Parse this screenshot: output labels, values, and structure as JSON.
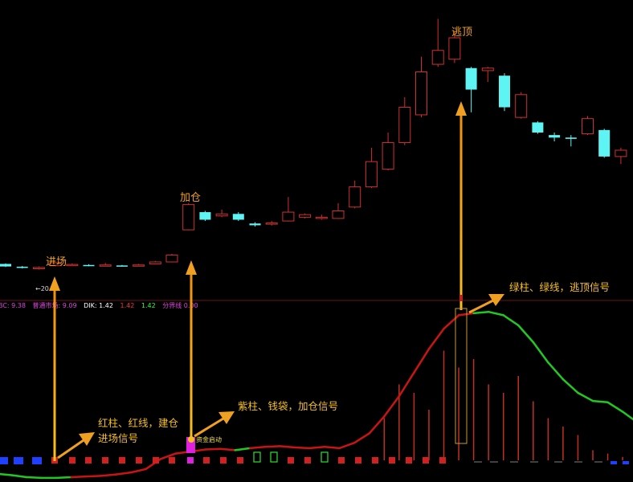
{
  "chart_data": {
    "type": "candlestick",
    "title": "",
    "price_panel": {
      "price_annotation": "←20.73",
      "annotations": {
        "entry": "进场",
        "add": "加仓",
        "escape": "逃顶"
      },
      "candles": [
        {
          "o": 10,
          "c": 9,
          "h": 10.2,
          "l": 8.8
        },
        {
          "o": 8.9,
          "c": 8.6,
          "h": 9.2,
          "l": 8.2
        },
        {
          "o": 8.4,
          "c": 8.6,
          "h": 9.0,
          "l": 7.8
        },
        {
          "o": 9.3,
          "c": 10.5,
          "h": 10.7,
          "l": 9.1
        },
        {
          "o": 9.6,
          "c": 9.8,
          "h": 10.2,
          "l": 9.4
        },
        {
          "o": 9.6,
          "c": 9.3,
          "h": 9.9,
          "l": 9.1
        },
        {
          "o": 9.3,
          "c": 9.6,
          "h": 10.4,
          "l": 9.1
        },
        {
          "o": 9.4,
          "c": 9.3,
          "h": 9.6,
          "l": 9.0
        },
        {
          "o": 9.3,
          "c": 9.6,
          "h": 10.0,
          "l": 9.1
        },
        {
          "o": 10.0,
          "c": 10.8,
          "h": 11.2,
          "l": 9.8
        },
        {
          "o": 10.8,
          "c": 13.5,
          "h": 14.0,
          "l": 10.6
        },
        {
          "o": 23.5,
          "c": 33.5,
          "h": 34.0,
          "l": 23.3
        },
        {
          "o": 30.5,
          "c": 27.5,
          "h": 31.0,
          "l": 27.0
        },
        {
          "o": 29.0,
          "c": 29.8,
          "h": 31.5,
          "l": 28.5
        },
        {
          "o": 29.8,
          "c": 27.5,
          "h": 30.5,
          "l": 27.0
        },
        {
          "o": 26.0,
          "c": 25.3,
          "h": 26.5,
          "l": 24.8
        },
        {
          "o": 25.8,
          "c": 26.2,
          "h": 27.0,
          "l": 25.2
        },
        {
          "o": 27.0,
          "c": 30.5,
          "h": 36.5,
          "l": 26.8
        },
        {
          "o": 28.5,
          "c": 29.5,
          "h": 30.0,
          "l": 28.0
        },
        {
          "o": 28.0,
          "c": 28.5,
          "h": 29.5,
          "l": 27.5
        },
        {
          "o": 28.0,
          "c": 31.0,
          "h": 34.0,
          "l": 27.8
        },
        {
          "o": 32.5,
          "c": 40.5,
          "h": 43.0,
          "l": 32.0
        },
        {
          "o": 40.5,
          "c": 50.5,
          "h": 56.0,
          "l": 40.0
        },
        {
          "o": 47.5,
          "c": 58.0,
          "h": 62.0,
          "l": 47.0
        },
        {
          "o": 58.0,
          "c": 72.0,
          "h": 76.0,
          "l": 57.0
        },
        {
          "o": 69.0,
          "c": 86.0,
          "h": 92.0,
          "l": 68.0
        },
        {
          "o": 89.0,
          "c": 94.5,
          "h": 107.0,
          "l": 88.0
        },
        {
          "o": 91.0,
          "c": 99.5,
          "h": 102.0,
          "l": 89.5
        },
        {
          "o": 87.5,
          "c": 79.0,
          "h": 88.0,
          "l": 70.0
        },
        {
          "o": 86.5,
          "c": 87.5,
          "h": 88.0,
          "l": 82.0
        },
        {
          "o": 84.5,
          "c": 72.0,
          "h": 85.5,
          "l": 70.5
        },
        {
          "o": 68.0,
          "c": 77.0,
          "h": 78.0,
          "l": 67.5
        },
        {
          "o": 66.0,
          "c": 62.0,
          "h": 66.5,
          "l": 61.5
        },
        {
          "o": 61.0,
          "c": 60.0,
          "h": 62.0,
          "l": 58.5
        },
        {
          "o": 60.0,
          "c": 59.5,
          "h": 61.0,
          "l": 56.5
        },
        {
          "o": 61.5,
          "c": 67.5,
          "h": 68.5,
          "l": 61.0
        },
        {
          "o": 63.0,
          "c": 52.5,
          "h": 63.5,
          "l": 52.0
        },
        {
          "o": 52.5,
          "c": 55.0,
          "h": 56.0,
          "l": 49.5
        }
      ]
    },
    "indicator_panel": {
      "legend": [
        {
          "text": "BC: 9.38",
          "color": "#e040e0"
        },
        {
          "text": "普通市场: 9.09",
          "color": "#e040e0"
        },
        {
          "text": "DIK: 1.42",
          "color": "#ffffff"
        },
        {
          "text": "1.42",
          "color": "#ff3030"
        },
        {
          "text": "1.42",
          "color": "#30ff30"
        },
        {
          "text": "分界线 0.00",
          "color": "#e040e0"
        }
      ],
      "purse_label": "资金启动",
      "line_values": [
        -2.0,
        -2.2,
        -2.5,
        -2.6,
        -2.6,
        -2.5,
        -2.4,
        -2.3,
        -2.1,
        -1.8,
        -1.3,
        0.2,
        1.0,
        1.3,
        1.6,
        1.7,
        1.5,
        1.8,
        2.0,
        2.1,
        1.9,
        1.8,
        2.0,
        1.8,
        2.6,
        4.0,
        6.5,
        9.5,
        13.0,
        16.5,
        19.5,
        21.5,
        21.8,
        22.0,
        21.5,
        20.0,
        17.5,
        14.5,
        12.0,
        10.0,
        8.8,
        8.6,
        7.2,
        5.6,
        5.3
      ],
      "line_colors": [
        "g",
        "g",
        "g",
        "g",
        "g",
        "r",
        "r",
        "r",
        "r",
        "r",
        "r",
        "r",
        "r",
        "r",
        "r",
        "r",
        "g",
        "r",
        "r",
        "r",
        "r",
        "r",
        "r",
        "r",
        "r",
        "r",
        "r",
        "r",
        "r",
        "r",
        "r",
        "r",
        "g",
        "g",
        "g",
        "g",
        "g",
        "g",
        "g",
        "g",
        "g",
        "g",
        "g",
        "g",
        "g"
      ],
      "bar_heights": [
        0,
        0,
        0,
        0,
        0,
        0,
        0,
        0,
        0,
        0,
        0,
        0,
        0,
        0,
        0,
        0,
        0,
        0,
        0,
        0,
        0,
        0,
        0,
        0,
        0,
        0,
        2.5,
        4.5,
        4.0,
        3.0,
        6.5,
        5.5,
        6.0,
        4.5,
        4.0,
        5.0,
        3.5,
        2.5,
        2.0,
        1.5,
        0.6,
        0.4,
        0.2,
        0,
        0
      ]
    },
    "notes": {
      "entry": [
        "红柱、红线，建仓",
        "进场信号"
      ],
      "add": "紫柱、钱袋，加仓信号",
      "escape": "绿柱、绿线，逃顶信号"
    },
    "colors": {
      "up": "#d03030",
      "down": "#5ff4f4",
      "line_red": "#c81414",
      "line_green": "#22c822",
      "arrow": "#f0a020",
      "divider": "#7a1a1a"
    }
  }
}
